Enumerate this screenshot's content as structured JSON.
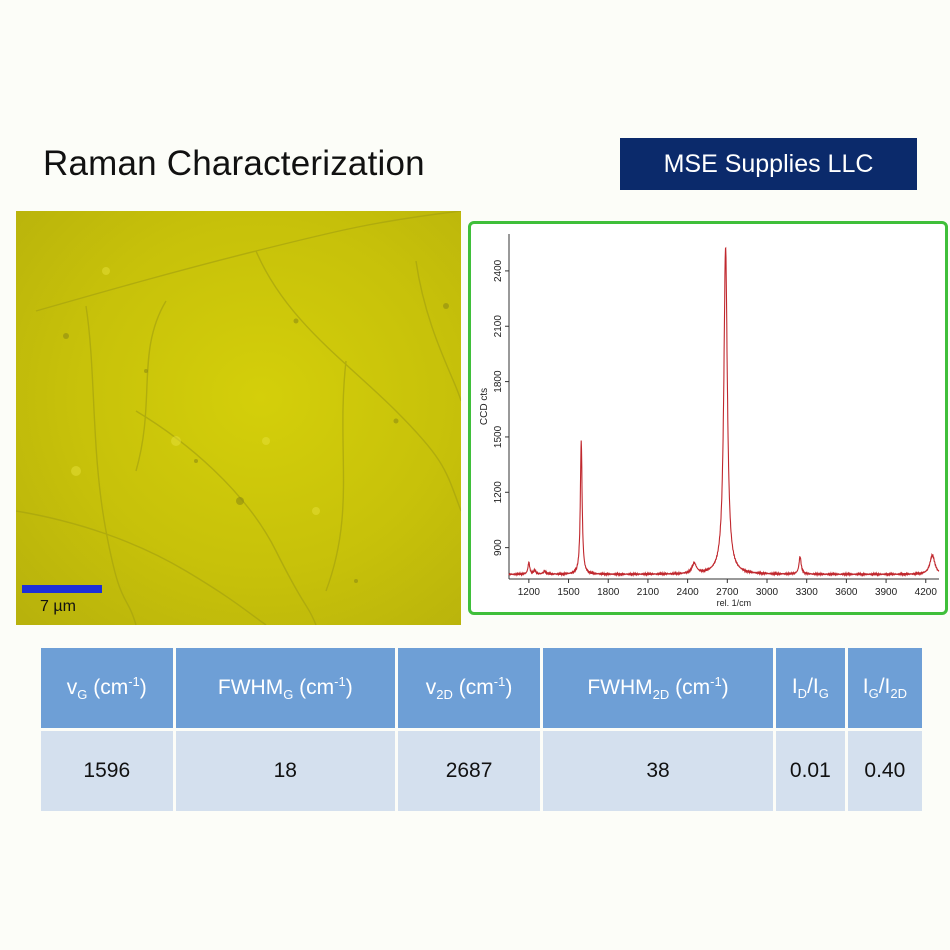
{
  "slide": {
    "title": "Raman Characterization",
    "brand": "MSE Supplies LLC"
  },
  "micrograph": {
    "scale_label": "7 µm",
    "scale_color": "#1d2fd8",
    "background_color": "#c9c30a"
  },
  "chart_data": {
    "type": "line",
    "ylabel": "CCD cts",
    "xlabel": "rel. 1/cm",
    "xlim": [
      1050,
      4300
    ],
    "ylim": [
      730,
      2600
    ],
    "x_ticks": [
      1200,
      1500,
      1800,
      2100,
      2400,
      2700,
      3000,
      3300,
      3600,
      3900,
      4200
    ],
    "y_ticks": [
      900,
      1200,
      1500,
      1800,
      2100,
      2400
    ],
    "grid": false,
    "line_color": "#c0282e",
    "baseline": 755,
    "peaks": [
      {
        "x": 1200,
        "y": 820
      },
      {
        "x": 1245,
        "y": 775
      },
      {
        "x": 1320,
        "y": 770
      },
      {
        "x": 1596,
        "y": 1480
      },
      {
        "x": 2450,
        "y": 810
      },
      {
        "x": 2687,
        "y": 2530
      },
      {
        "x": 3250,
        "y": 850
      },
      {
        "x": 4250,
        "y": 860
      }
    ]
  },
  "table": {
    "headers": [
      {
        "main": "v",
        "sub": "G",
        "tail": " (cm",
        "sup": "-1",
        "end": ")"
      },
      {
        "main": "FWHM",
        "sub": "G",
        "tail": " (cm",
        "sup": "-1",
        "end": ")"
      },
      {
        "main": "v",
        "sub": "2D",
        "tail": " (cm",
        "sup": "-1",
        "end": ")"
      },
      {
        "main": "FWHM",
        "sub": "2D",
        "tail": " (cm",
        "sup": "-1",
        "end": ")"
      },
      {
        "main": "I",
        "sub": "D",
        "tail": "/I",
        "sup2": "G"
      },
      {
        "main": "I",
        "sub": "G",
        "tail": "/I",
        "sup2": "2D"
      }
    ],
    "values": [
      "1596",
      "18",
      "2687",
      "38",
      "0.01",
      "0.40"
    ]
  }
}
